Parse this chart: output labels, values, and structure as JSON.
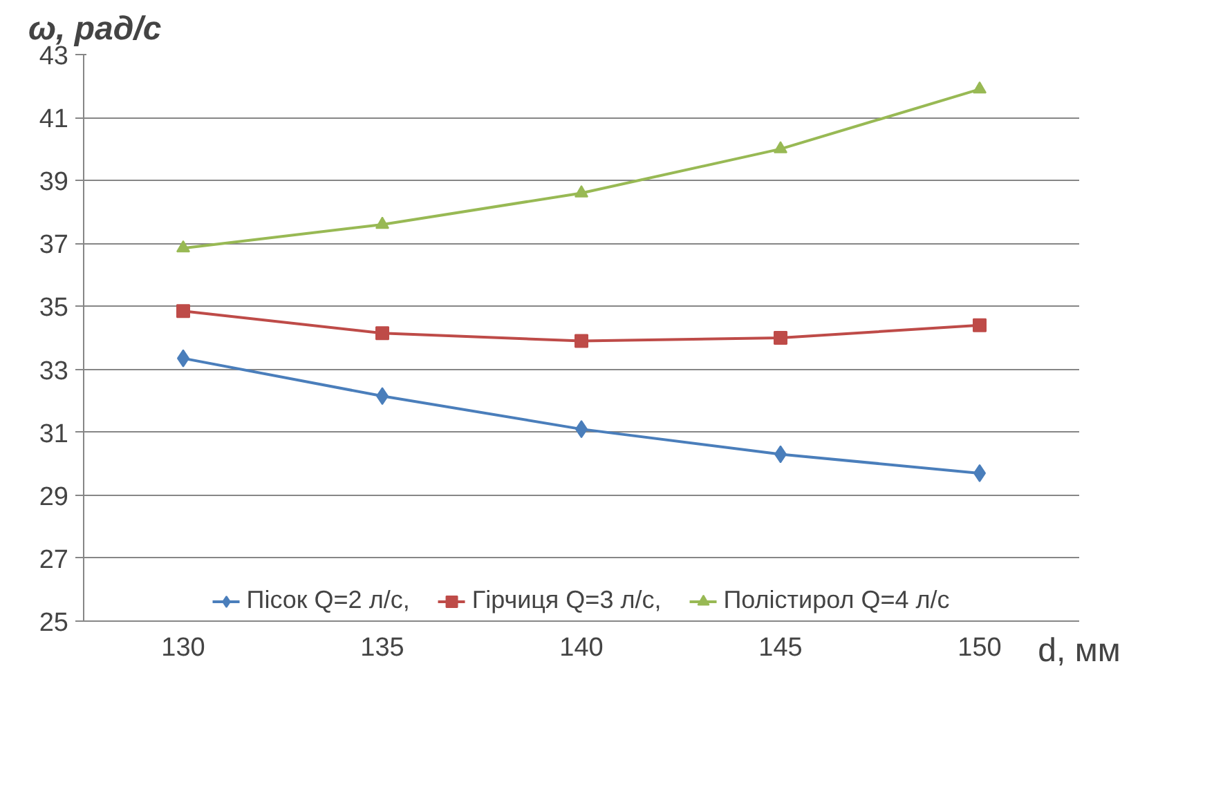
{
  "chart_data": {
    "type": "line",
    "ylabel": "ω, рад/с",
    "xlabel": "d, мм",
    "categories": [
      "130",
      "135",
      "140",
      "145",
      "150"
    ],
    "series": [
      {
        "name": "Пісок Q=2 л/с,",
        "color": "#4a7ebb",
        "marker": "diamond",
        "values": [
          33.35,
          32.15,
          31.1,
          30.3,
          29.7
        ]
      },
      {
        "name": "Гірчиця Q=3 л/с,",
        "color": "#be4b48",
        "marker": "square",
        "values": [
          34.85,
          34.15,
          33.9,
          34.0,
          34.4
        ]
      },
      {
        "name": "Полістирол Q=4 л/с",
        "color": "#98b954",
        "marker": "triangle",
        "values": [
          36.85,
          37.6,
          38.6,
          40.0,
          41.9
        ]
      }
    ],
    "ylim": [
      25,
      43
    ],
    "yticks": [
      25,
      27,
      29,
      31,
      33,
      35,
      37,
      39,
      41,
      43
    ],
    "grid": "y",
    "legend": "bottom"
  }
}
